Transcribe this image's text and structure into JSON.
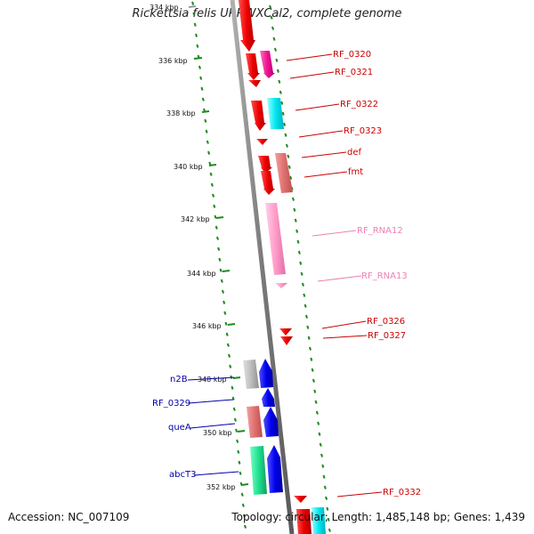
{
  "title": "Rickettsia felis URRWXCal2, complete genome",
  "footer": {
    "accession": "Accession: NC_007109",
    "topology": "Topology: circular; Length: 1,485,148 bp; Genes: 1,439"
  },
  "colors": {
    "backbone": "#8a8a8a",
    "tick": "#1f8a1f",
    "forward_label": "#cc0000",
    "forward_rna_label": "#f080b0",
    "reverse_label": "#0000aa"
  },
  "ruler": [
    "334 kbp",
    "336 kbp",
    "338 kbp",
    "340 kbp",
    "342 kbp",
    "344 kbp",
    "346 kbp",
    "348 kbp",
    "350 kbp",
    "352 kbp"
  ],
  "labels": {
    "RF_0320": "RF_0320",
    "RF_0321": "RF_0321",
    "RF_0322": "RF_0322",
    "RF_0323": "RF_0323",
    "def": "def",
    "fmt": "fmt",
    "RF_RNA12": "RF_RNA12",
    "RF_RNA13": "RF_RNA13",
    "RF_0326": "RF_0326",
    "RF_0327": "RF_0327",
    "RF_0332": "RF_0332",
    "n2B": "n2B",
    "RF_0329": "RF_0329",
    "queA": "queA",
    "abcT3": "abcT3"
  }
}
